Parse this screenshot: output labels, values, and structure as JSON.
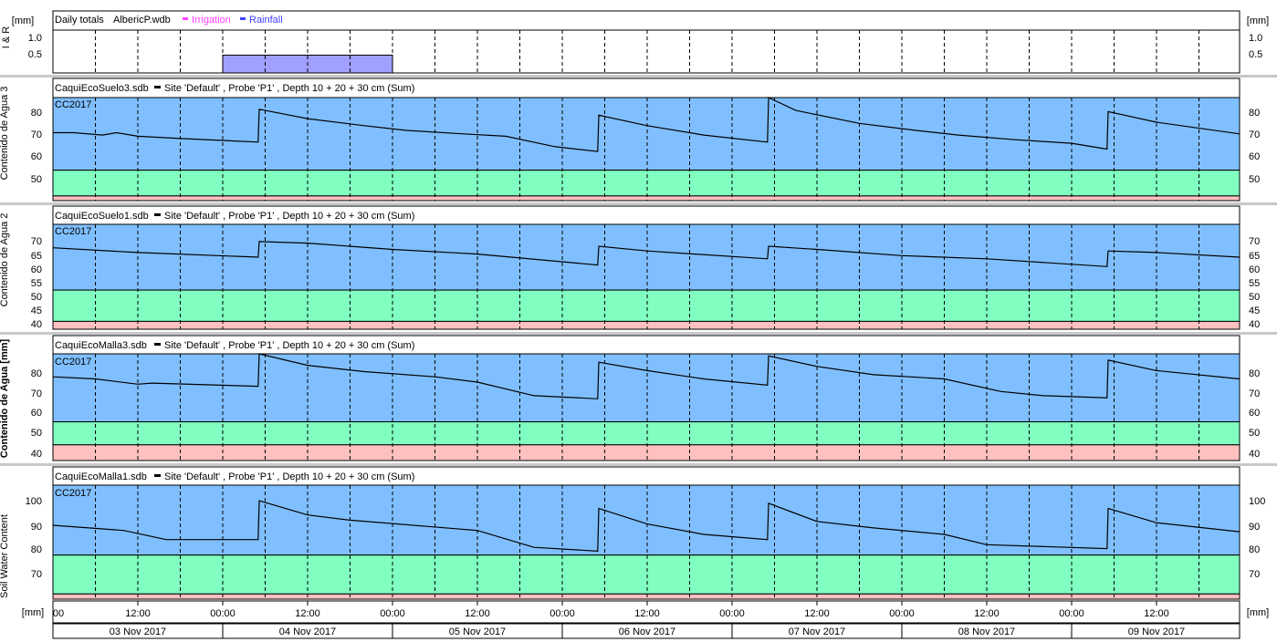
{
  "units": {
    "mm": "[mm]"
  },
  "rain_panel": {
    "ylabel": "I & R",
    "header": {
      "title": "Daily totals",
      "file": "AlbericP.wdb",
      "irrigation_label": "Irrigation",
      "rainfall_label": "Rainfall"
    },
    "yticks": [
      "1.0",
      "0.5"
    ]
  },
  "panels": [
    {
      "ylabel": "Contenido de Agua 3",
      "header": {
        "file": "CaquiEcoSuelo3.sdb",
        "series": "Site 'Default' , Probe 'P1' , Depth 10 + 20 + 30 cm (Sum)"
      },
      "tag": "CC2017",
      "yticks": [
        "80",
        "70",
        "60",
        "50"
      ]
    },
    {
      "ylabel": "Contenido de Agua 2",
      "header": {
        "file": "CaquiEcoSuelo1.sdb",
        "series": "Site 'Default' , Probe 'P1' , Depth 10 + 20 + 30 cm (Sum)"
      },
      "tag": "CC2017",
      "yticks": [
        "70",
        "65",
        "60",
        "55",
        "50",
        "45",
        "40"
      ]
    },
    {
      "ylabel": "Contenido de Agua [mm]",
      "header": {
        "file": "CaquiEcoMalla3.sdb",
        "series": "Site 'Default' , Probe 'P1' , Depth 10 + 20 + 30 cm (Sum)"
      },
      "tag": "CC2017",
      "yticks": [
        "80",
        "70",
        "60",
        "50",
        "40"
      ]
    },
    {
      "ylabel": "Soil Water Content",
      "header": {
        "file": "CaquiEcoMalla1.sdb",
        "series": "Site 'Default' , Probe 'P1' , Depth 10 + 20 + 30 cm (Sum)"
      },
      "tag": "CC2017",
      "yticks": [
        "100",
        "90",
        "80",
        "70"
      ]
    }
  ],
  "time_axis": {
    "hour_labels": [
      "00",
      "12:00",
      "00:00",
      "12:00",
      "00:00",
      "12:00",
      "00:00",
      "12:00",
      "00:00",
      "12:00",
      "00:00",
      "12:00",
      "00:00",
      "12:00"
    ],
    "dates": [
      "03 Nov 2017",
      "04 Nov 2017",
      "05 Nov 2017",
      "06 Nov 2017",
      "07 Nov 2017",
      "08 Nov 2017",
      "09 Nov 2017"
    ]
  },
  "colors": {
    "saturation_band": "#80bfff",
    "readily_available_band": "#80ffc0",
    "stress_band": "#ffc0c0",
    "rainfall": "#a0a0ff",
    "irrigation_legend": "#ff40ff",
    "rainfall_legend": "#4040ff",
    "line": "#000000"
  },
  "chart_data": [
    {
      "type": "bar",
      "title": "Daily totals",
      "ylabel": "I & R",
      "units": "mm",
      "ylim": [
        0,
        1.2
      ],
      "series": [
        {
          "name": "Rainfall",
          "bars": [
            {
              "start": "04 Nov 2017 00:00",
              "end": "05 Nov 2017 00:00",
              "value": 0.5
            }
          ]
        },
        {
          "name": "Irrigation",
          "bars": []
        }
      ]
    },
    {
      "type": "line",
      "title": "CaquiEcoSuelo3.sdb",
      "ylabel": "Contenido de Agua 3",
      "ylim": [
        42,
        86
      ],
      "bands": [
        {
          "from": 55,
          "to": 86,
          "label": "CC2017"
        },
        {
          "from": 44,
          "to": 55
        },
        {
          "from": 42,
          "to": 44
        }
      ],
      "series": [
        {
          "name": "Site 'Default' , Probe 'P1' , Depth 10 + 20 + 30 cm (Sum)",
          "x": [
            "03 Nov 2017 00:00",
            "03 Nov 2017 03:00",
            "03 Nov 2017 07:00",
            "03 Nov 2017 09:00",
            "03 Nov 2017 12:00",
            "03 Nov 2017 18:00",
            "04 Nov 2017 05:00",
            "04 Nov 2017 05:10",
            "04 Nov 2017 12:00",
            "04 Nov 2017 20:00",
            "05 Nov 2017 02:00",
            "05 Nov 2017 10:00",
            "05 Nov 2017 16:00",
            "05 Nov 2017 23:00",
            "06 Nov 2017 05:00",
            "06 Nov 2017 05:10",
            "06 Nov 2017 12:00",
            "06 Nov 2017 20:00",
            "07 Nov 2017 05:00",
            "07 Nov 2017 05:10",
            "07 Nov 2017 09:00",
            "07 Nov 2017 18:00",
            "08 Nov 2017 02:00",
            "08 Nov 2017 08:00",
            "08 Nov 2017 16:00",
            "09 Nov 2017 00:00",
            "09 Nov 2017 05:00",
            "09 Nov 2017 05:10",
            "09 Nov 2017 12:00",
            "09 Nov 2017 23:59"
          ],
          "values": [
            71,
            71,
            70,
            71,
            69.5,
            68.5,
            67,
            81,
            77,
            74,
            72,
            70.5,
            69.5,
            65,
            63,
            78.5,
            74,
            70,
            67,
            86,
            80.5,
            75,
            72,
            70,
            68,
            66.5,
            64,
            80,
            75.5,
            70.5
          ]
        }
      ]
    },
    {
      "type": "line",
      "title": "CaquiEcoSuelo1.sdb",
      "ylabel": "Contenido de Agua 2",
      "ylim": [
        38.5,
        72
      ],
      "bands": [
        {
          "from": 51,
          "to": 72,
          "label": "CC2017"
        },
        {
          "from": 41,
          "to": 51
        },
        {
          "from": 38.5,
          "to": 41
        }
      ],
      "series": [
        {
          "name": "Site 'Default' , Probe 'P1' , Depth 10 + 20 + 30 cm (Sum)",
          "x": [
            "03 Nov 2017 00:00",
            "03 Nov 2017 12:00",
            "04 Nov 2017 05:00",
            "04 Nov 2017 05:10",
            "04 Nov 2017 12:00",
            "05 Nov 2017 00:00",
            "05 Nov 2017 12:00",
            "06 Nov 2017 05:00",
            "06 Nov 2017 05:10",
            "06 Nov 2017 12:00",
            "07 Nov 2017 05:00",
            "07 Nov 2017 05:10",
            "07 Nov 2017 12:00",
            "08 Nov 2017 00:00",
            "08 Nov 2017 12:00",
            "09 Nov 2017 05:00",
            "09 Nov 2017 05:10",
            "09 Nov 2017 12:00",
            "09 Nov 2017 23:59"
          ],
          "values": [
            64.5,
            63,
            61.5,
            66.5,
            66,
            64,
            62.5,
            59,
            65,
            63.5,
            61,
            65,
            64,
            62,
            61,
            58.5,
            63.5,
            63,
            61.5
          ]
        }
      ]
    },
    {
      "type": "line",
      "title": "CaquiEcoMalla3.sdb",
      "ylabel": "Contenido de Agua [mm]",
      "ylim": [
        37,
        88
      ],
      "bands": [
        {
          "from": 55.5,
          "to": 88,
          "label": "CC2017"
        },
        {
          "from": 44.5,
          "to": 55.5
        },
        {
          "from": 37,
          "to": 44.5
        }
      ],
      "series": [
        {
          "name": "Site 'Default' , Probe 'P1' , Depth 10 + 20 + 30 cm (Sum)",
          "x": [
            "03 Nov 2017 00:00",
            "03 Nov 2017 06:00",
            "03 Nov 2017 12:00",
            "03 Nov 2017 14:00",
            "04 Nov 2017 05:00",
            "04 Nov 2017 05:10",
            "04 Nov 2017 12:00",
            "04 Nov 2017 20:00",
            "05 Nov 2017 06:00",
            "05 Nov 2017 12:00",
            "05 Nov 2017 20:00",
            "06 Nov 2017 05:00",
            "06 Nov 2017 05:10",
            "06 Nov 2017 12:00",
            "06 Nov 2017 20:00",
            "07 Nov 2017 05:00",
            "07 Nov 2017 05:10",
            "07 Nov 2017 12:00",
            "07 Nov 2017 20:00",
            "08 Nov 2017 06:00",
            "08 Nov 2017 14:00",
            "08 Nov 2017 20:00",
            "09 Nov 2017 05:00",
            "09 Nov 2017 05:10",
            "09 Nov 2017 12:00",
            "09 Nov 2017 23:59"
          ],
          "values": [
            77,
            76,
            73.5,
            74,
            72.5,
            88,
            82.5,
            79.5,
            77,
            74.5,
            68,
            66.5,
            84,
            80,
            76,
            73,
            87,
            82,
            78,
            76,
            70,
            68,
            67,
            85,
            80,
            76
          ]
        }
      ]
    },
    {
      "type": "line",
      "title": "CaquiEcoMalla1.sdb",
      "ylabel": "Soil Water Content",
      "ylim": [
        62,
        106
      ],
      "bands": [
        {
          "from": 79,
          "to": 106,
          "label": "CC2017"
        },
        {
          "from": 64,
          "to": 79
        },
        {
          "from": 62,
          "to": 64
        }
      ],
      "series": [
        {
          "name": "Site 'Default' , Probe 'P1' , Depth 10 + 20 + 30 cm (Sum)",
          "x": [
            "03 Nov 2017 00:00",
            "03 Nov 2017 10:00",
            "03 Nov 2017 16:00",
            "04 Nov 2017 05:00",
            "04 Nov 2017 05:10",
            "04 Nov 2017 12:00",
            "04 Nov 2017 18:00",
            "05 Nov 2017 12:00",
            "05 Nov 2017 20:00",
            "06 Nov 2017 05:00",
            "06 Nov 2017 05:10",
            "06 Nov 2017 12:00",
            "06 Nov 2017 20:00",
            "07 Nov 2017 05:00",
            "07 Nov 2017 05:10",
            "07 Nov 2017 12:00",
            "07 Nov 2017 20:00",
            "08 Nov 2017 06:00",
            "08 Nov 2017 12:00",
            "09 Nov 2017 05:00",
            "09 Nov 2017 05:10",
            "09 Nov 2017 12:00",
            "09 Nov 2017 23:59"
          ],
          "values": [
            90.5,
            88.5,
            85,
            85,
            100,
            94.5,
            92.5,
            88.5,
            82,
            80.5,
            97,
            91,
            87,
            85,
            99,
            92,
            89.5,
            87,
            83,
            81.5,
            97,
            91.5,
            88
          ]
        }
      ]
    }
  ]
}
